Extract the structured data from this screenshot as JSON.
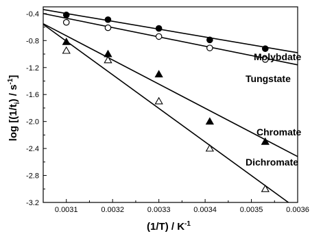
{
  "chart_data": {
    "type": "scatter",
    "title": "",
    "xlabel": "(1/T) / K",
    "xlabel_sup": "-1",
    "ylabel": "log [(1/t",
    "ylabel_sub": "i",
    "ylabel_rest": ") / s",
    "ylabel_sup": "-1",
    "ylabel_end": "]",
    "xlim": [
      0.00305,
      0.0036
    ],
    "ylim": [
      -3.2,
      -0.3
    ],
    "xticks": [
      0.0031,
      0.0032,
      0.0033,
      0.0034,
      0.0035,
      0.0036
    ],
    "xtick_labels": [
      "0.0031",
      "0.0032",
      "0.0033",
      "0.0034",
      "0.0035",
      "0.0036"
    ],
    "yticks": [
      -0.4,
      -0.8,
      -1.2,
      -1.6,
      -2.0,
      -2.4,
      -2.8,
      -3.2
    ],
    "ytick_labels": [
      "-0.4",
      "-0.8",
      "-1.2",
      "-1.6",
      "-2.0",
      "-2.4",
      "-2.8",
      "-3.2"
    ],
    "grid": false,
    "legend": "direct labels",
    "series": [
      {
        "name": "Molybdate",
        "marker": "filled-circle",
        "x": [
          0.0031,
          0.00319,
          0.0033,
          0.00341,
          0.00353
        ],
        "y": [
          -0.42,
          -0.49,
          -0.62,
          -0.79,
          -0.92
        ],
        "fit": {
          "x": [
            0.00305,
            0.0036
          ],
          "y": [
            -0.34,
            -0.98
          ]
        }
      },
      {
        "name": "Tungstate",
        "marker": "open-circle",
        "x": [
          0.0031,
          0.00319,
          0.0033,
          0.00341,
          0.00353
        ],
        "y": [
          -0.53,
          -0.61,
          -0.74,
          -0.91,
          -1.08
        ],
        "fit": {
          "x": [
            0.00305,
            0.0036
          ],
          "y": [
            -0.4,
            -1.16
          ]
        }
      },
      {
        "name": "Chromate",
        "marker": "filled-triangle",
        "x": [
          0.0031,
          0.00319,
          0.0033,
          0.00341,
          0.00353
        ],
        "y": [
          -0.82,
          -1.0,
          -1.3,
          -2.0,
          -2.3
        ],
        "fit": {
          "x": [
            0.00305,
            0.0036
          ],
          "y": [
            -0.55,
            -2.52
          ]
        }
      },
      {
        "name": "Dichromate",
        "marker": "open-triangle",
        "x": [
          0.0031,
          0.00319,
          0.0033,
          0.00341,
          0.00353
        ],
        "y": [
          -0.95,
          -1.09,
          -1.7,
          -2.4,
          -3.0
        ],
        "fit": {
          "x": [
            0.00305,
            0.00358
          ],
          "y": [
            -0.56,
            -3.2
          ]
        }
      }
    ]
  }
}
